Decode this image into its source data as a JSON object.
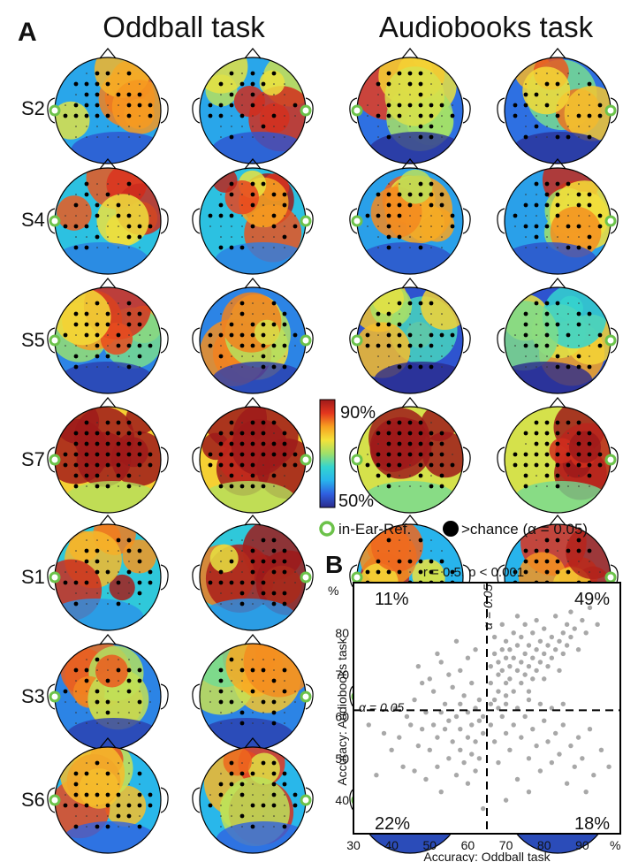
{
  "panel_a": {
    "letter": "A",
    "titles": [
      "Oddball task",
      "Audiobooks task"
    ],
    "subjects": [
      "S2",
      "S4",
      "S5",
      "S7",
      "S1",
      "S3",
      "S6"
    ],
    "colorbar": {
      "max_label": "90%",
      "min_label": "50%",
      "min": 50,
      "max": 90,
      "colors": [
        "#2a2a8c",
        "#2f5fe0",
        "#28b4ec",
        "#33d4d0",
        "#9fe06a",
        "#f4e23a",
        "#f7a020",
        "#e4361e",
        "#9e1a1a"
      ]
    },
    "legend": {
      "ear_ref": "in-Ear-Ref.",
      "chance": ">chance (α = 0.05)"
    },
    "colors": {
      "ear_ref": "#6cc24a",
      "dot": "#000000",
      "head": "#000000"
    }
  },
  "panel_b": {
    "letter": "B",
    "stat": "r = 0.5, p < 0.001",
    "quadrants": {
      "tl": "11%",
      "tr": "49%",
      "bl": "22%",
      "br": "18%"
    },
    "alpha_h": "α = 0.05",
    "alpha_v": "α = 0.05",
    "unit_x": "%",
    "unit_y": "%"
  },
  "chart_data": {
    "type": "scatter",
    "xlabel": "Accuracy: Oddball task",
    "ylabel": "Accuracy: Audiobooks task",
    "xlim": [
      30,
      100
    ],
    "ylim": [
      32,
      92
    ],
    "xticks": [
      30,
      40,
      50,
      60,
      70,
      80,
      90
    ],
    "yticks": [
      40,
      50,
      60,
      70,
      80
    ],
    "thresholds": {
      "x": 65,
      "y": 61.5
    },
    "point_color": "#606060",
    "correlation": {
      "r": 0.5,
      "p": "< 0.001"
    },
    "quadrant_percent": {
      "top_left": 11,
      "top_right": 49,
      "bottom_left": 22,
      "bottom_right": 18
    },
    "points": [
      [
        34,
        58
      ],
      [
        36,
        46
      ],
      [
        38,
        56
      ],
      [
        40,
        52
      ],
      [
        41,
        62
      ],
      [
        42,
        55
      ],
      [
        43,
        48
      ],
      [
        44,
        60
      ],
      [
        45,
        58
      ],
      [
        46,
        47
      ],
      [
        46,
        64
      ],
      [
        47,
        53
      ],
      [
        48,
        57
      ],
      [
        49,
        61
      ],
      [
        49,
        45
      ],
      [
        50,
        52
      ],
      [
        51,
        58
      ],
      [
        51,
        66
      ],
      [
        52,
        48
      ],
      [
        52,
        55
      ],
      [
        53,
        61
      ],
      [
        53,
        42
      ],
      [
        54,
        57
      ],
      [
        54,
        63
      ],
      [
        55,
        50
      ],
      [
        55,
        59
      ],
      [
        56,
        54
      ],
      [
        56,
        67
      ],
      [
        57,
        46
      ],
      [
        57,
        60
      ],
      [
        58,
        52
      ],
      [
        58,
        63
      ],
      [
        58,
        57
      ],
      [
        59,
        49
      ],
      [
        59,
        65
      ],
      [
        60,
        55
      ],
      [
        60,
        61
      ],
      [
        60,
        44
      ],
      [
        61,
        58
      ],
      [
        61,
        51
      ],
      [
        61,
        68
      ],
      [
        62,
        62
      ],
      [
        62,
        54
      ],
      [
        62,
        47
      ],
      [
        63,
        59
      ],
      [
        63,
        64
      ],
      [
        63,
        50
      ],
      [
        64,
        56
      ],
      [
        64,
        60
      ],
      [
        64,
        38
      ],
      [
        50,
        69
      ],
      [
        47,
        72
      ],
      [
        53,
        73
      ],
      [
        55,
        70
      ],
      [
        58,
        71
      ],
      [
        60,
        74
      ],
      [
        62,
        76
      ],
      [
        48,
        68
      ],
      [
        52,
        75
      ],
      [
        57,
        78
      ],
      [
        66,
        68
      ],
      [
        66,
        72
      ],
      [
        67,
        75
      ],
      [
        67,
        64
      ],
      [
        67,
        79
      ],
      [
        68,
        70
      ],
      [
        68,
        73
      ],
      [
        68,
        66
      ],
      [
        69,
        76
      ],
      [
        69,
        71
      ],
      [
        69,
        82
      ],
      [
        70,
        74
      ],
      [
        70,
        68
      ],
      [
        70,
        78
      ],
      [
        70,
        65
      ],
      [
        71,
        72
      ],
      [
        71,
        76
      ],
      [
        71,
        69
      ],
      [
        72,
        80
      ],
      [
        72,
        74
      ],
      [
        72,
        66
      ],
      [
        73,
        77
      ],
      [
        73,
        71
      ],
      [
        73,
        84
      ],
      [
        74,
        73
      ],
      [
        74,
        68
      ],
      [
        74,
        79
      ],
      [
        75,
        75
      ],
      [
        75,
        70
      ],
      [
        75,
        82
      ],
      [
        76,
        72
      ],
      [
        76,
        77
      ],
      [
        76,
        66
      ],
      [
        77,
        74
      ],
      [
        77,
        80
      ],
      [
        77,
        69
      ],
      [
        78,
        76
      ],
      [
        78,
        71
      ],
      [
        78,
        83
      ],
      [
        79,
        78
      ],
      [
        79,
        73
      ],
      [
        80,
        75
      ],
      [
        80,
        69
      ],
      [
        80,
        81
      ],
      [
        81,
        77
      ],
      [
        81,
        72
      ],
      [
        82,
        79
      ],
      [
        82,
        74
      ],
      [
        83,
        76
      ],
      [
        83,
        84
      ],
      [
        84,
        78
      ],
      [
        84,
        71
      ],
      [
        85,
        80
      ],
      [
        85,
        75
      ],
      [
        86,
        82
      ],
      [
        86,
        77
      ],
      [
        87,
        79
      ],
      [
        87,
        85
      ],
      [
        88,
        81
      ],
      [
        89,
        76
      ],
      [
        90,
        83
      ],
      [
        91,
        80
      ],
      [
        92,
        86
      ],
      [
        94,
        82
      ],
      [
        66,
        63
      ],
      [
        68,
        62
      ],
      [
        70,
        63
      ],
      [
        73,
        62
      ],
      [
        76,
        64
      ],
      [
        79,
        63
      ],
      [
        82,
        62
      ],
      [
        85,
        63
      ],
      [
        66,
        58
      ],
      [
        67,
        54
      ],
      [
        68,
        49
      ],
      [
        69,
        60
      ],
      [
        70,
        56
      ],
      [
        71,
        52
      ],
      [
        72,
        58
      ],
      [
        73,
        45
      ],
      [
        74,
        55
      ],
      [
        75,
        60
      ],
      [
        76,
        50
      ],
      [
        77,
        57
      ],
      [
        78,
        53
      ],
      [
        79,
        47
      ],
      [
        80,
        59
      ],
      [
        81,
        54
      ],
      [
        82,
        49
      ],
      [
        83,
        56
      ],
      [
        84,
        51
      ],
      [
        85,
        58
      ],
      [
        86,
        44
      ],
      [
        87,
        53
      ],
      [
        88,
        48
      ],
      [
        89,
        55
      ],
      [
        90,
        50
      ],
      [
        91,
        42
      ],
      [
        92,
        57
      ],
      [
        93,
        46
      ],
      [
        95,
        52
      ],
      [
        97,
        48
      ],
      [
        70,
        40
      ],
      [
        76,
        42
      ]
    ]
  }
}
